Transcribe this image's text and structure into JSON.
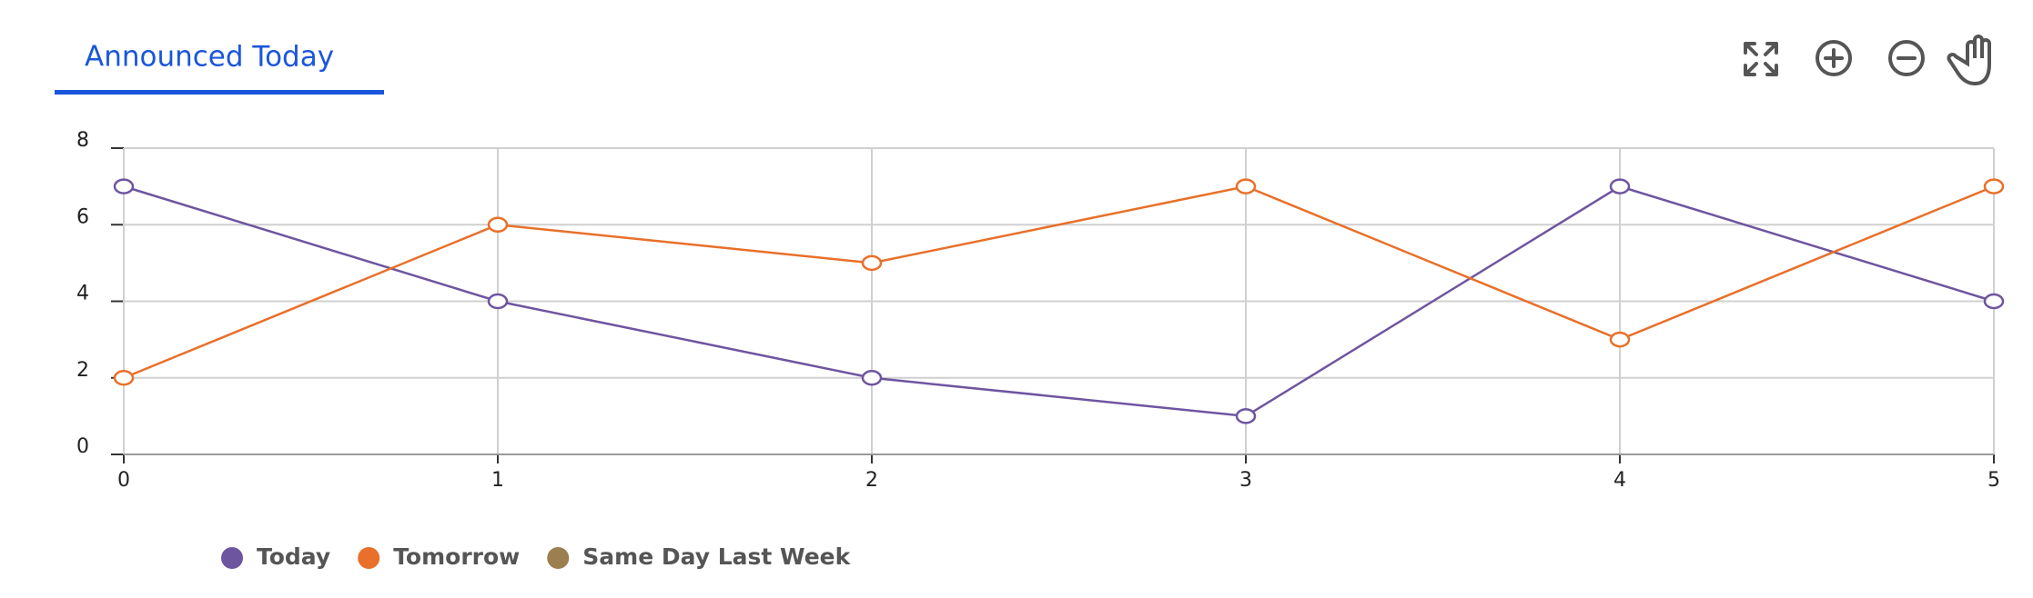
{
  "tab": "Announced Today",
  "chart_data": {
    "type": "line",
    "x": [
      0,
      1,
      2,
      3,
      4,
      5
    ],
    "series": [
      {
        "name": "Today",
        "color": "#6e55a0",
        "values": [
          7,
          4,
          2,
          1,
          7,
          4
        ]
      },
      {
        "name": "Tomorrow",
        "color": "#e8702a",
        "values": [
          2,
          6,
          5,
          7,
          3,
          7
        ]
      },
      {
        "name": "Same Day Last Week",
        "color": "#9c7f50",
        "values": [
          null,
          null,
          null,
          null,
          null,
          null
        ]
      }
    ],
    "xlim": [
      0,
      5
    ],
    "xticks": [
      0,
      1,
      2,
      3,
      4,
      5
    ],
    "ylim": [
      0,
      8
    ],
    "yticks": [
      0,
      2,
      4,
      6,
      8
    ],
    "grid": true,
    "legend": "bottom"
  }
}
